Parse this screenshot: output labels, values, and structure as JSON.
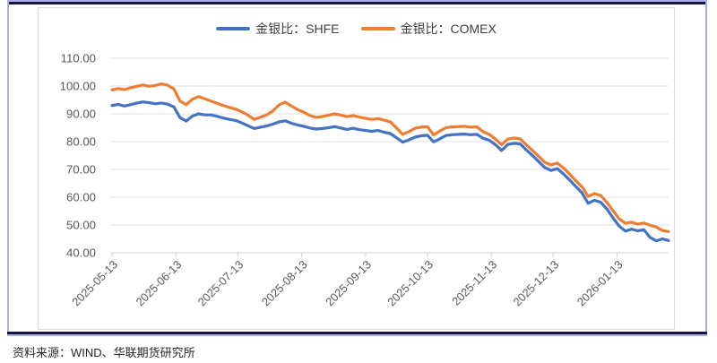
{
  "figure": {
    "source_note": "资料来源：WIND、华联期货研究所"
  },
  "colors": {
    "shfe_blue": "#4472C4",
    "comex_orange": "#ED7D31",
    "gridline": "#E2E2E2",
    "axis_line": "#D2D2D2",
    "tick_label": "#595959",
    "legend_text": "#404040",
    "panel_border": "#D9D9D9",
    "frame_navy": "#16163A",
    "frame_lavender": "#ACACF0"
  },
  "chart_data": {
    "type": "line",
    "title": "",
    "x_start_date": "2025-05-13",
    "x_step_days": 3,
    "x_total_days": 270,
    "x_tick_labels": [
      "2025-05-13",
      "2025-06-13",
      "2025-07-13",
      "2025-08-13",
      "2025-09-13",
      "2025-10-13",
      "2025-11-13",
      "2025-12-13",
      "2026-01-13"
    ],
    "x_tick_day_offsets": [
      0,
      31,
      61,
      92,
      123,
      153,
      184,
      214,
      245
    ],
    "ylim": [
      40,
      110
    ],
    "y_tick_step": 10,
    "y_tick_labels": [
      "110.00",
      "100.00",
      "90.00",
      "80.00",
      "70.00",
      "60.00",
      "50.00",
      "40.00"
    ],
    "grid": "horizontal",
    "legend_position": "top",
    "series": [
      {
        "name": "金银比：SHFE",
        "color": "#4472C4",
        "values": [
          93.0,
          93.4,
          92.8,
          93.3,
          93.9,
          94.3,
          94.0,
          93.6,
          93.9,
          93.5,
          92.5,
          88.6,
          87.4,
          89.2,
          90.0,
          89.6,
          89.6,
          89.1,
          88.5,
          88.0,
          87.6,
          86.7,
          85.7,
          84.7,
          85.2,
          85.6,
          86.3,
          87.1,
          87.5,
          86.6,
          86.0,
          85.5,
          84.9,
          84.5,
          84.7,
          85.0,
          85.4,
          84.9,
          84.4,
          84.8,
          84.3,
          84.0,
          83.7,
          84.0,
          83.4,
          82.9,
          81.4,
          79.8,
          80.6,
          81.6,
          82.1,
          82.3,
          79.9,
          81.0,
          82.2,
          82.5,
          82.6,
          82.7,
          82.5,
          82.6,
          81.2,
          80.5,
          78.9,
          76.8,
          79.0,
          79.4,
          79.2,
          77.0,
          75.0,
          72.8,
          70.6,
          69.6,
          70.3,
          68.4,
          66.2,
          63.8,
          61.5,
          57.8,
          58.9,
          58.2,
          55.8,
          52.6,
          49.6,
          47.8,
          48.5,
          47.9,
          48.3,
          45.5,
          44.3,
          45.0,
          44.4
        ]
      },
      {
        "name": "金银比：COMEX",
        "color": "#ED7D31",
        "values": [
          98.6,
          99.1,
          98.7,
          99.4,
          99.9,
          100.4,
          99.9,
          100.2,
          100.8,
          100.3,
          99.0,
          94.6,
          93.3,
          95.3,
          96.2,
          95.4,
          94.6,
          93.8,
          93.0,
          92.3,
          91.7,
          90.7,
          89.5,
          88.0,
          88.8,
          89.6,
          91.0,
          93.2,
          94.2,
          92.8,
          91.5,
          90.6,
          89.4,
          88.7,
          89.0,
          89.5,
          90.0,
          89.5,
          89.0,
          89.4,
          88.8,
          88.4,
          88.0,
          88.3,
          87.7,
          87.1,
          84.9,
          82.6,
          83.6,
          84.8,
          85.2,
          85.4,
          82.4,
          83.8,
          85.0,
          85.3,
          85.4,
          85.5,
          85.2,
          85.3,
          83.6,
          82.6,
          80.9,
          78.9,
          80.9,
          81.3,
          81.0,
          78.8,
          76.8,
          74.7,
          72.5,
          71.6,
          72.3,
          70.5,
          68.3,
          65.9,
          63.7,
          60.3,
          61.3,
          60.6,
          58.2,
          55.2,
          52.2,
          50.6,
          51.0,
          50.3,
          50.7,
          49.9,
          49.3,
          48.0,
          47.6
        ]
      }
    ]
  }
}
